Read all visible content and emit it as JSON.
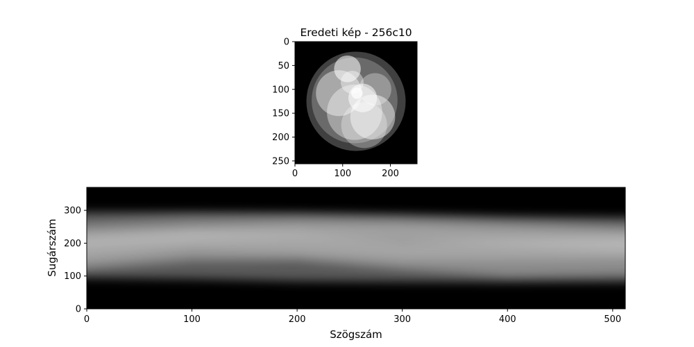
{
  "chart_data": [
    {
      "type": "image",
      "title": "Eredeti kép - 256c10",
      "xlabel": "",
      "ylabel": "",
      "xlim": [
        0,
        256
      ],
      "ylim": [
        256,
        0
      ],
      "xticks": [
        0,
        100,
        200
      ],
      "yticks": [
        0,
        50,
        100,
        150,
        200,
        250
      ],
      "colormap": "gray",
      "background": "#000000",
      "circles": [
        {
          "cx": 128,
          "cy": 125,
          "r": 104,
          "value": 0.25
        },
        {
          "cx": 125,
          "cy": 123,
          "r": 90,
          "value": 0.22
        },
        {
          "cx": 92,
          "cy": 108,
          "r": 48,
          "value": 0.42
        },
        {
          "cx": 125,
          "cy": 148,
          "r": 58,
          "value": 0.38
        },
        {
          "cx": 163,
          "cy": 158,
          "r": 47,
          "value": 0.46
        },
        {
          "cx": 145,
          "cy": 175,
          "r": 48,
          "value": 0.3
        },
        {
          "cx": 168,
          "cy": 100,
          "r": 34,
          "value": 0.3
        },
        {
          "cx": 110,
          "cy": 57,
          "r": 28,
          "value": 0.55
        },
        {
          "cx": 120,
          "cy": 85,
          "r": 24,
          "value": 0.4
        },
        {
          "cx": 142,
          "cy": 118,
          "r": 30,
          "value": 0.55
        },
        {
          "cx": 130,
          "cy": 108,
          "r": 12,
          "value": 0.7
        }
      ]
    },
    {
      "type": "heatmap",
      "title": "",
      "xlabel": "Szögszám",
      "ylabel": "Sugárszám",
      "xlim": [
        0,
        512
      ],
      "ylim": [
        0,
        370
      ],
      "xticks": [
        0,
        100,
        200,
        300,
        400,
        500
      ],
      "yticks": [
        0,
        100,
        200,
        300
      ],
      "colormap": "gray",
      "background": "#000000",
      "bands": [
        {
          "center": [
            195,
            193,
            188,
            184,
            181,
            180
          ],
          "halfwidth": [
            100,
            102,
            104,
            102,
            100,
            98
          ],
          "intensity": 0.35
        },
        {
          "center": [
            180,
            200,
            205,
            190,
            175,
            172
          ],
          "halfwidth": [
            62,
            55,
            58,
            70,
            76,
            68
          ],
          "intensity": 0.3
        },
        {
          "center": [
            178,
            205,
            200,
            178,
            180,
            185
          ],
          "halfwidth": [
            35,
            30,
            32,
            30,
            32,
            34
          ],
          "intensity": 0.22
        },
        {
          "center": [
            225,
            245,
            252,
            248,
            232,
            215
          ],
          "halfwidth": [
            40,
            38,
            36,
            38,
            40,
            42
          ],
          "intensity": 0.18
        }
      ],
      "band_x": [
        0,
        100,
        200,
        300,
        400,
        512
      ]
    }
  ]
}
